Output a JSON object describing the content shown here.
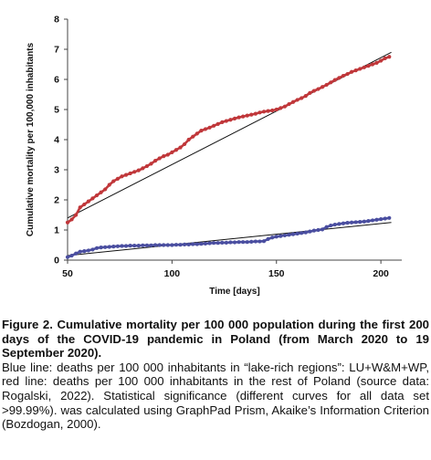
{
  "chart_data": {
    "type": "line",
    "xlabel": "Time [days]",
    "ylabel": "Cumulative mortality per 100,000 inhabitants",
    "xlim": [
      50,
      210
    ],
    "ylim": [
      0,
      8
    ],
    "x_ticks": [
      50,
      100,
      150,
      200
    ],
    "y_ticks": [
      0,
      1,
      2,
      3,
      4,
      5,
      6,
      7,
      8
    ],
    "grid": false,
    "legend": "none",
    "series": [
      {
        "color": "#c0373a",
        "marker": "dot",
        "x": [
          50,
          52,
          54,
          56,
          58,
          60,
          62,
          64,
          66,
          68,
          70,
          72,
          74,
          76,
          78,
          80,
          82,
          84,
          86,
          88,
          90,
          92,
          94,
          96,
          98,
          100,
          102,
          104,
          106,
          108,
          110,
          112,
          114,
          116,
          118,
          120,
          122,
          124,
          126,
          128,
          130,
          132,
          134,
          136,
          138,
          140,
          142,
          144,
          146,
          148,
          150,
          152,
          154,
          156,
          158,
          160,
          162,
          164,
          166,
          168,
          170,
          172,
          174,
          176,
          178,
          180,
          182,
          184,
          186,
          188,
          190,
          192,
          194,
          196,
          198,
          200,
          202,
          204
        ],
        "y": [
          1.25,
          1.35,
          1.5,
          1.75,
          1.85,
          1.95,
          2.05,
          2.15,
          2.25,
          2.35,
          2.5,
          2.62,
          2.7,
          2.78,
          2.83,
          2.88,
          2.93,
          2.98,
          3.05,
          3.12,
          3.2,
          3.3,
          3.38,
          3.45,
          3.5,
          3.58,
          3.66,
          3.74,
          3.85,
          4.0,
          4.1,
          4.2,
          4.3,
          4.35,
          4.4,
          4.46,
          4.52,
          4.58,
          4.62,
          4.66,
          4.7,
          4.74,
          4.77,
          4.8,
          4.83,
          4.86,
          4.9,
          4.93,
          4.95,
          4.97,
          5.0,
          5.05,
          5.1,
          5.18,
          5.25,
          5.32,
          5.38,
          5.45,
          5.55,
          5.62,
          5.68,
          5.75,
          5.82,
          5.9,
          5.98,
          6.05,
          6.12,
          6.18,
          6.25,
          6.3,
          6.35,
          6.4,
          6.45,
          6.5,
          6.55,
          6.62,
          6.7,
          6.75
        ]
      },
      {
        "color": "#4a4ea0",
        "marker": "dot",
        "x": [
          50,
          52,
          54,
          56,
          58,
          60,
          62,
          64,
          66,
          68,
          70,
          72,
          74,
          76,
          78,
          80,
          82,
          84,
          86,
          88,
          90,
          92,
          94,
          96,
          98,
          100,
          102,
          104,
          106,
          108,
          110,
          112,
          114,
          116,
          118,
          120,
          122,
          124,
          126,
          128,
          130,
          132,
          134,
          136,
          138,
          140,
          142,
          144,
          146,
          148,
          150,
          152,
          154,
          156,
          158,
          160,
          162,
          164,
          166,
          168,
          170,
          172,
          174,
          176,
          178,
          180,
          182,
          184,
          186,
          188,
          190,
          192,
          194,
          196,
          198,
          200,
          202,
          204
        ],
        "y": [
          0.1,
          0.15,
          0.22,
          0.28,
          0.3,
          0.32,
          0.35,
          0.4,
          0.42,
          0.43,
          0.44,
          0.45,
          0.46,
          0.47,
          0.47,
          0.48,
          0.48,
          0.48,
          0.49,
          0.49,
          0.49,
          0.5,
          0.5,
          0.5,
          0.5,
          0.5,
          0.51,
          0.51,
          0.52,
          0.52,
          0.53,
          0.53,
          0.54,
          0.55,
          0.56,
          0.57,
          0.57,
          0.58,
          0.58,
          0.59,
          0.59,
          0.6,
          0.6,
          0.6,
          0.61,
          0.62,
          0.62,
          0.63,
          0.7,
          0.75,
          0.78,
          0.8,
          0.82,
          0.84,
          0.86,
          0.88,
          0.9,
          0.92,
          0.95,
          0.98,
          1.0,
          1.02,
          1.1,
          1.15,
          1.18,
          1.2,
          1.22,
          1.24,
          1.25,
          1.26,
          1.27,
          1.28,
          1.3,
          1.32,
          1.34,
          1.36,
          1.38,
          1.4
        ]
      }
    ],
    "trend_lines": [
      {
        "color": "#111111",
        "x": [
          50,
          205
        ],
        "y": [
          1.4,
          6.9
        ]
      },
      {
        "color": "#111111",
        "x": [
          50,
          205
        ],
        "y": [
          0.15,
          1.25
        ]
      }
    ]
  },
  "caption": {
    "title": "Figure 2. Cumulative mortality per 100 000 population during the first 200 days of the COVID-19 pandemic in Poland (from March 2020 to 19 September 2020).",
    "body": "Blue line: deaths per 100 000 inhabitants in “lake-rich regions”: LU+W&M+WP, red line: deaths per 100 000 inhabitants in the rest of Poland (source data: Rogalski, 2022). Statistical significance (different curves for all data set >99.99%). was calculated using GraphPad Prism, Akaike’s Information Criterion (Bozdogan, 2000)."
  }
}
